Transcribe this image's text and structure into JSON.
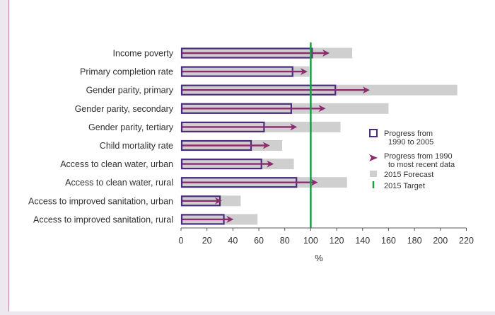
{
  "chart_data": {
    "type": "bar",
    "categories": [
      "Income poverty",
      "Primary completion rate",
      "Gender parity, primary",
      "Gender parity, secondary",
      "Gender parity, tertiary",
      "Child mortality rate",
      "Access to clean water, urban",
      "Access to clean water, rural",
      "Access to improved sanitation, urban",
      "Access to improved sanitation, rural"
    ],
    "series": [
      {
        "name": "Progress from 1990 to 2005",
        "values": [
          101,
          86,
          119,
          85,
          64,
          54,
          62,
          89,
          30,
          33
        ]
      },
      {
        "name": "Progress from 1990 to most recent data",
        "values": [
          114,
          97,
          145,
          111,
          89,
          68,
          71,
          105,
          31,
          40
        ]
      },
      {
        "name": "2015 Forecast",
        "values": [
          132,
          99,
          213,
          160,
          123,
          78,
          87,
          128,
          46,
          59
        ]
      }
    ],
    "target": {
      "name": "2015 Target",
      "value": 100
    },
    "x_ticks": [
      0,
      20,
      40,
      60,
      80,
      100,
      120,
      140,
      160,
      180,
      200,
      220
    ],
    "xlabel": "%",
    "ylabel": "",
    "xlim": [
      0,
      220
    ],
    "legend": [
      {
        "line1": "Progress from",
        "line2": "1990 to 2005"
      },
      {
        "line1": "Progress from 1990",
        "line2": "to most recent data"
      },
      {
        "line1": "2015 Forecast",
        "line2": ""
      },
      {
        "line1": "2015 Target",
        "line2": ""
      }
    ],
    "legend_position": "right",
    "colors": {
      "forecast": "#cfcfcf",
      "progress": "#4a2c7e",
      "arrow": "#8e2a6e",
      "target": "#1f9a3c",
      "axis": "#555555"
    }
  }
}
